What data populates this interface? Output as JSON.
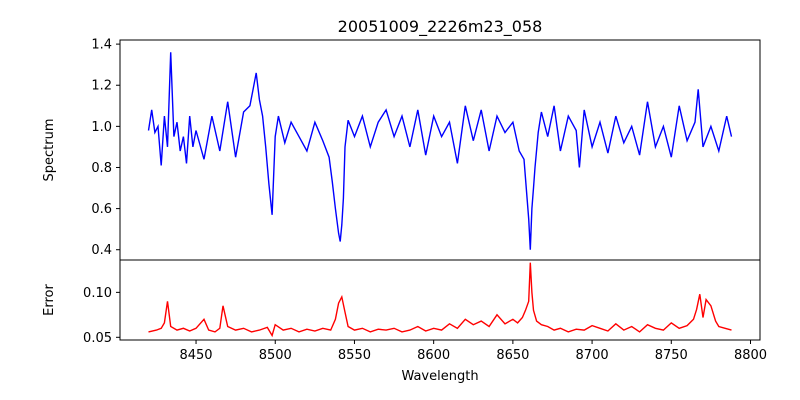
{
  "chart_data": {
    "type": "line",
    "title": "20051009_2226m23_058",
    "xlabel": "Wavelength",
    "xlim": [
      8402,
      8806
    ],
    "xticks": [
      8450,
      8500,
      8550,
      8600,
      8650,
      8700,
      8750,
      8800
    ],
    "xtick_labels": [
      "8450",
      "8500",
      "8550",
      "8600",
      "8650",
      "8700",
      "8750",
      "8800"
    ],
    "grid": false,
    "panels": [
      {
        "name": "spectrum",
        "ylabel": "Spectrum",
        "ylim": [
          0.35,
          1.42
        ],
        "yticks": [
          0.4,
          0.6,
          0.8,
          1.0,
          1.2,
          1.4
        ],
        "ytick_labels": [
          "0.4",
          "0.6",
          "0.8",
          "1.0",
          "1.2",
          "1.4"
        ],
        "series": [
          {
            "name": "Spectrum",
            "color": "#0000ff",
            "x": [
              8420,
              8422,
              8424,
              8426,
              8428,
              8430,
              8432,
              8434,
              8436,
              8438,
              8440,
              8442,
              8444,
              8446,
              8448,
              8450,
              8455,
              8460,
              8465,
              8470,
              8475,
              8480,
              8484,
              8486,
              8488,
              8490,
              8492,
              8494,
              8496,
              8498,
              8500,
              8502,
              8506,
              8510,
              8515,
              8520,
              8525,
              8530,
              8534,
              8536,
              8538,
              8540,
              8541,
              8542,
              8543,
              8544,
              8546,
              8550,
              8555,
              8560,
              8565,
              8570,
              8575,
              8580,
              8585,
              8590,
              8595,
              8600,
              8605,
              8610,
              8615,
              8620,
              8625,
              8630,
              8635,
              8640,
              8645,
              8650,
              8654,
              8657,
              8660,
              8661,
              8662,
              8663,
              8664,
              8666,
              8668,
              8672,
              8676,
              8680,
              8685,
              8690,
              8692,
              8695,
              8700,
              8705,
              8710,
              8715,
              8720,
              8725,
              8730,
              8735,
              8740,
              8745,
              8750,
              8755,
              8760,
              8765,
              8767,
              8770,
              8775,
              8780,
              8785,
              8788
            ],
            "y": [
              0.98,
              1.08,
              0.97,
              1.0,
              0.81,
              1.05,
              0.9,
              1.36,
              0.95,
              1.02,
              0.88,
              0.95,
              0.82,
              1.05,
              0.9,
              0.98,
              0.84,
              1.05,
              0.88,
              1.12,
              0.85,
              1.07,
              1.1,
              1.18,
              1.26,
              1.13,
              1.05,
              0.9,
              0.72,
              0.57,
              0.95,
              1.05,
              0.92,
              1.02,
              0.95,
              0.88,
              1.02,
              0.93,
              0.85,
              0.73,
              0.6,
              0.48,
              0.44,
              0.52,
              0.65,
              0.9,
              1.03,
              0.95,
              1.05,
              0.9,
              1.02,
              1.08,
              0.95,
              1.05,
              0.9,
              1.08,
              0.86,
              1.05,
              0.95,
              1.02,
              0.82,
              1.1,
              0.93,
              1.08,
              0.88,
              1.05,
              0.97,
              1.02,
              0.88,
              0.84,
              0.55,
              0.4,
              0.6,
              0.7,
              0.8,
              0.97,
              1.07,
              0.95,
              1.1,
              0.88,
              1.05,
              0.98,
              0.8,
              1.08,
              0.9,
              1.02,
              0.87,
              1.05,
              0.92,
              1.0,
              0.86,
              1.12,
              0.9,
              1.0,
              0.85,
              1.1,
              0.93,
              1.02,
              1.18,
              0.9,
              1.0,
              0.88,
              1.05,
              0.95
            ]
          }
        ]
      },
      {
        "name": "error",
        "ylabel": "Error",
        "ylim": [
          0.047,
          0.136
        ],
        "yticks": [
          0.05,
          0.1
        ],
        "ytick_labels": [
          "0.05",
          "0.10"
        ],
        "series": [
          {
            "name": "Error",
            "color": "#ff0000",
            "x": [
              8420,
              8425,
              8428,
              8430,
              8432,
              8434,
              8438,
              8442,
              8446,
              8450,
              8455,
              8458,
              8462,
              8465,
              8467,
              8470,
              8475,
              8480,
              8485,
              8490,
              8495,
              8498,
              8500,
              8505,
              8510,
              8515,
              8520,
              8525,
              8530,
              8535,
              8538,
              8540,
              8542,
              8544,
              8546,
              8550,
              8555,
              8560,
              8565,
              8570,
              8575,
              8580,
              8585,
              8590,
              8595,
              8600,
              8605,
              8610,
              8615,
              8620,
              8625,
              8630,
              8635,
              8640,
              8645,
              8650,
              8653,
              8656,
              8658,
              8660,
              8661,
              8662,
              8663,
              8665,
              8668,
              8672,
              8676,
              8680,
              8685,
              8690,
              8695,
              8700,
              8705,
              8710,
              8715,
              8720,
              8725,
              8730,
              8735,
              8740,
              8745,
              8750,
              8755,
              8760,
              8764,
              8766,
              8768,
              8770,
              8772,
              8775,
              8778,
              8780,
              8784,
              8788
            ],
            "y": [
              0.056,
              0.058,
              0.06,
              0.066,
              0.09,
              0.062,
              0.058,
              0.06,
              0.057,
              0.06,
              0.07,
              0.058,
              0.056,
              0.06,
              0.085,
              0.062,
              0.058,
              0.06,
              0.056,
              0.058,
              0.061,
              0.052,
              0.064,
              0.058,
              0.06,
              0.056,
              0.059,
              0.057,
              0.06,
              0.058,
              0.07,
              0.088,
              0.095,
              0.078,
              0.062,
              0.058,
              0.06,
              0.056,
              0.059,
              0.058,
              0.06,
              0.056,
              0.058,
              0.062,
              0.057,
              0.06,
              0.058,
              0.065,
              0.06,
              0.07,
              0.064,
              0.068,
              0.062,
              0.075,
              0.065,
              0.07,
              0.066,
              0.072,
              0.08,
              0.09,
              0.133,
              0.1,
              0.08,
              0.068,
              0.064,
              0.062,
              0.058,
              0.06,
              0.056,
              0.059,
              0.058,
              0.063,
              0.06,
              0.057,
              0.065,
              0.058,
              0.062,
              0.056,
              0.064,
              0.06,
              0.058,
              0.066,
              0.06,
              0.063,
              0.07,
              0.081,
              0.098,
              0.072,
              0.092,
              0.085,
              0.068,
              0.062,
              0.06,
              0.058
            ]
          }
        ]
      }
    ]
  }
}
